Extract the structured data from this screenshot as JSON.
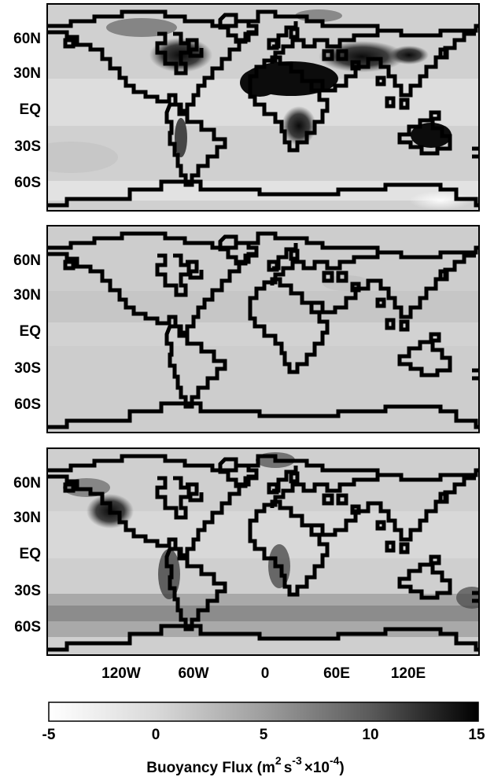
{
  "figure": {
    "panels": [
      {
        "id": "top"
      },
      {
        "id": "middle"
      },
      {
        "id": "bottom"
      }
    ],
    "lat_labels": [
      "60N",
      "30N",
      "EQ",
      "30S",
      "60S"
    ],
    "lon_labels": [
      "120W",
      "60W",
      "0",
      "60E",
      "120E"
    ]
  },
  "colorbar": {
    "ticks": [
      "-5",
      "0",
      "5",
      "10",
      "15"
    ],
    "range": [
      -5,
      15
    ],
    "title_main": "Buoyancy Flux (m",
    "title_exp1": "2",
    "title_mid": "s",
    "title_exp2": "-3",
    "title_times": "×10",
    "title_exp3": "-4",
    "title_end": ")"
  },
  "colors": {
    "ocean_mid": "#cfcfcf",
    "ocean_light": "#e3e3e3",
    "high_flux": "#111111",
    "coastline": "#000000"
  }
}
